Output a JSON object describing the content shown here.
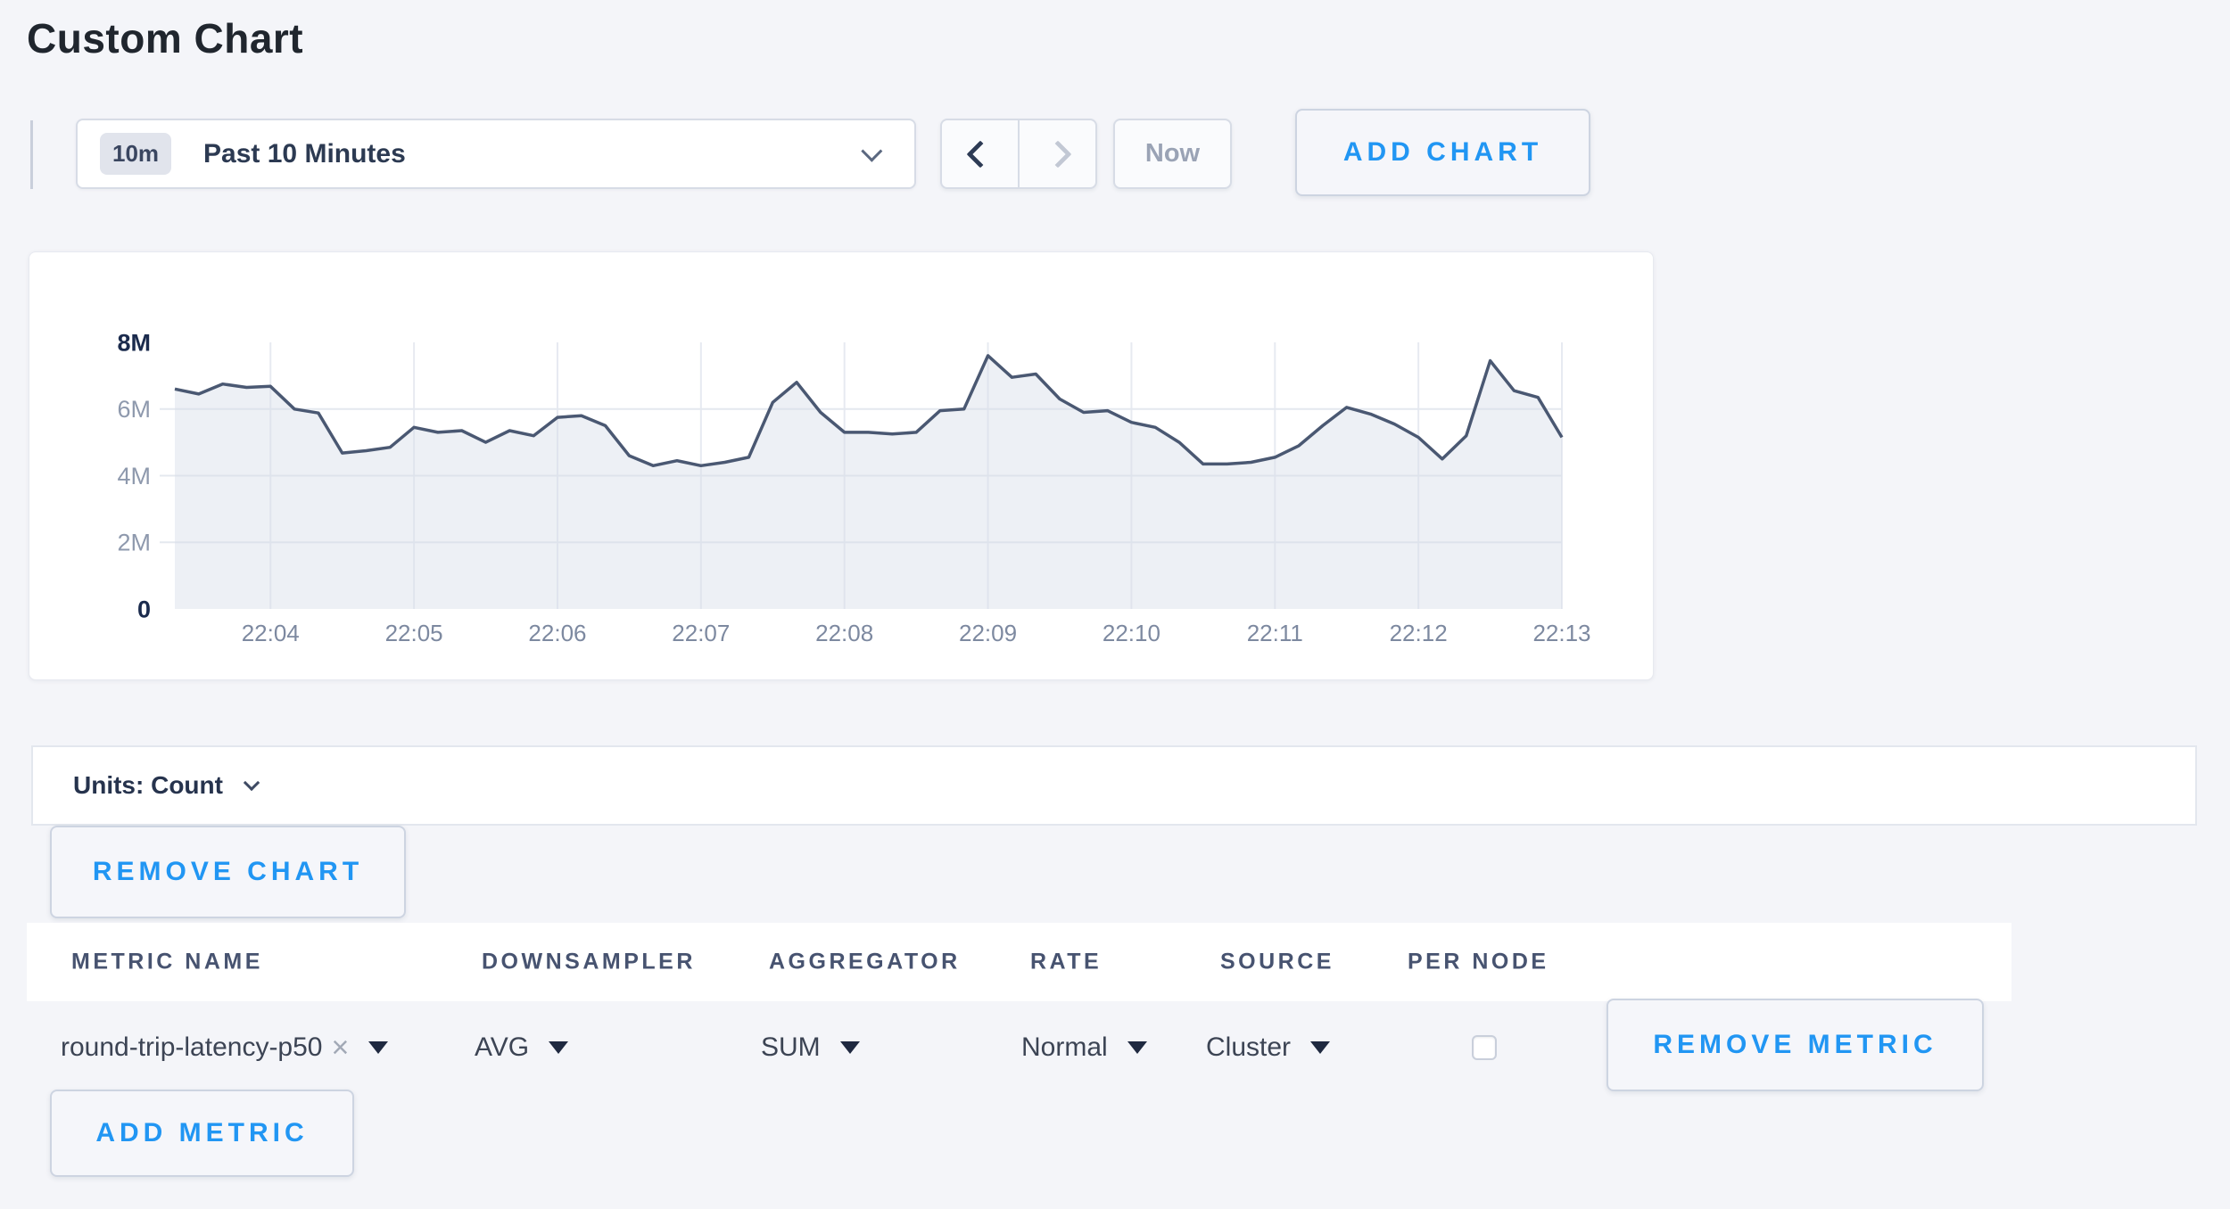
{
  "page": {
    "title": "Custom Chart",
    "background_color": "#f4f5f9",
    "accent_blue": "#2196f3"
  },
  "toolbar": {
    "time_window_badge": "10m",
    "time_window_label": "Past 10 Minutes",
    "now_label": "Now",
    "add_chart_label": "ADD CHART"
  },
  "chart_data": {
    "type": "area",
    "title": "",
    "xlabel": "",
    "ylabel": "",
    "x_ticks": [
      "22:04",
      "22:05",
      "22:06",
      "22:07",
      "22:08",
      "22:09",
      "22:10",
      "22:11",
      "22:12",
      "22:13"
    ],
    "y_ticks": [
      {
        "label": "0",
        "value": 0
      },
      {
        "label": "2M",
        "value": 2
      },
      {
        "label": "4M",
        "value": 4
      },
      {
        "label": "6M",
        "value": 6
      },
      {
        "label": "8M",
        "value": 8
      }
    ],
    "ylim_millions": [
      0,
      8
    ],
    "grid": true,
    "legend": "none",
    "line_color": "#4a5872",
    "fill_color": "rgba(216,221,232,0.45)",
    "series": [
      {
        "name": "round-trip-latency-p50",
        "start_time": "22:03:20",
        "step_seconds": 10,
        "values_millions": [
          6.6,
          6.45,
          6.75,
          6.65,
          6.68,
          6.0,
          5.88,
          4.68,
          4.75,
          4.85,
          5.45,
          5.3,
          5.35,
          5.0,
          5.35,
          5.2,
          5.75,
          5.8,
          5.5,
          4.6,
          4.3,
          4.45,
          4.3,
          4.4,
          4.55,
          6.2,
          6.8,
          5.9,
          5.3,
          5.3,
          5.25,
          5.3,
          5.95,
          6.0,
          7.6,
          6.95,
          7.05,
          6.3,
          5.9,
          5.95,
          5.6,
          5.45,
          5.0,
          4.35,
          4.35,
          4.4,
          4.55,
          4.9,
          5.5,
          6.05,
          5.85,
          5.55,
          5.15,
          4.5,
          5.2,
          7.45,
          6.55,
          6.35,
          5.15
        ]
      }
    ]
  },
  "units_bar": {
    "label": "Units: Count"
  },
  "chart_actions": {
    "remove_chart_label": "REMOVE CHART"
  },
  "metrics_table": {
    "headers": [
      "METRIC NAME",
      "DOWNSAMPLER",
      "AGGREGATOR",
      "RATE",
      "SOURCE",
      "PER NODE"
    ],
    "rows": [
      {
        "metric_name": "round-trip-latency-p50",
        "clear_icon": "×",
        "downsampler": "AVG",
        "aggregator": "SUM",
        "rate": "Normal",
        "source": "Cluster",
        "per_node_checked": false,
        "remove_label": "REMOVE METRIC"
      }
    ],
    "add_metric_label": "ADD METRIC"
  }
}
